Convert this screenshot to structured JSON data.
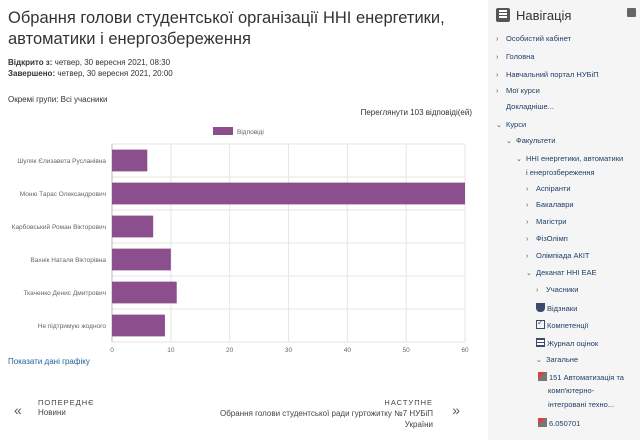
{
  "page": {
    "title": "Обрання голови студентської організації ННІ енергетики, автоматики і енергозбереження",
    "opened_label": "Відкрито з:",
    "opened_value": " четвер, 30 вересня 2021, 08:30",
    "closed_label": "Завершено:",
    "closed_value": " четвер, 30 вересня 2021, 20:00",
    "groups": "Окремі групи: Всі учасники",
    "responses_link": "Переглянути 103 відповіді(ей)",
    "show_data": "Показати дані графіку"
  },
  "chart_data": {
    "type": "bar",
    "orientation": "horizontal",
    "categories": [
      "Шуляк Єлизавета Русланівна",
      "Моню Тарас Олександрович",
      "Карбовський Роман Вікторович",
      "Вахнік Наталя Вікторівна",
      "Ткаченко Денис Дмитрович",
      "Не підтримую жодного"
    ],
    "series": [
      {
        "name": "Відповіді",
        "values": [
          6,
          60,
          7,
          10,
          11,
          9
        ]
      }
    ],
    "xlim": [
      0,
      60
    ],
    "xticks": [
      0,
      10,
      20,
      30,
      40,
      50,
      60
    ],
    "grid": true,
    "legend": "top-center",
    "bar_color": "#8a4f8c"
  },
  "pager": {
    "prev_label": "ПОПЕРЕДНЄ",
    "prev_name": "Новини",
    "next_label": "НАСТУПНЕ",
    "next_name": "Обрання голови студентської ради гуртожитку №7 НУБіП України"
  },
  "nav": {
    "header": "Навігація",
    "items": [
      {
        "label": "Особистий кабінет",
        "arrow": "›"
      },
      {
        "label": "Головна",
        "arrow": "›"
      },
      {
        "label": "Навчальний портал НУБіП",
        "arrow": "›"
      },
      {
        "label": "Мої курси",
        "arrow": "›"
      },
      {
        "label": "Докладніше...",
        "arrow": ""
      },
      {
        "label": "Курси",
        "arrow": "⌄"
      },
      {
        "label": "Факультети",
        "arrow": "⌄"
      },
      {
        "label": "ННІ енергетики, автоматики",
        "arrow": "⌄"
      },
      {
        "label": "і енергозбереження",
        "arrow": ""
      },
      {
        "label": "Аспіранти",
        "arrow": "›"
      },
      {
        "label": "Бакалаври",
        "arrow": "›"
      },
      {
        "label": "Магістри",
        "arrow": "›"
      },
      {
        "label": "ФізОлімп",
        "arrow": "›"
      },
      {
        "label": "Олімпіада АКІТ",
        "arrow": "›"
      },
      {
        "label": "Деканат ННІ ЕАЕ",
        "arrow": "⌄"
      },
      {
        "label": "Учасники",
        "arrow": "›"
      },
      {
        "label": "Відзнаки",
        "arrow": ""
      },
      {
        "label": "Компетенції",
        "arrow": ""
      },
      {
        "label": "Журнал оцінок",
        "arrow": ""
      },
      {
        "label": "Загальне",
        "arrow": "⌄"
      },
      {
        "label": "151 Автоматизація та",
        "arrow": ""
      },
      {
        "label": "комп'ютерно-",
        "arrow": ""
      },
      {
        "label": "інтегровані техно...",
        "arrow": ""
      },
      {
        "label": "6.050701",
        "arrow": ""
      }
    ]
  }
}
